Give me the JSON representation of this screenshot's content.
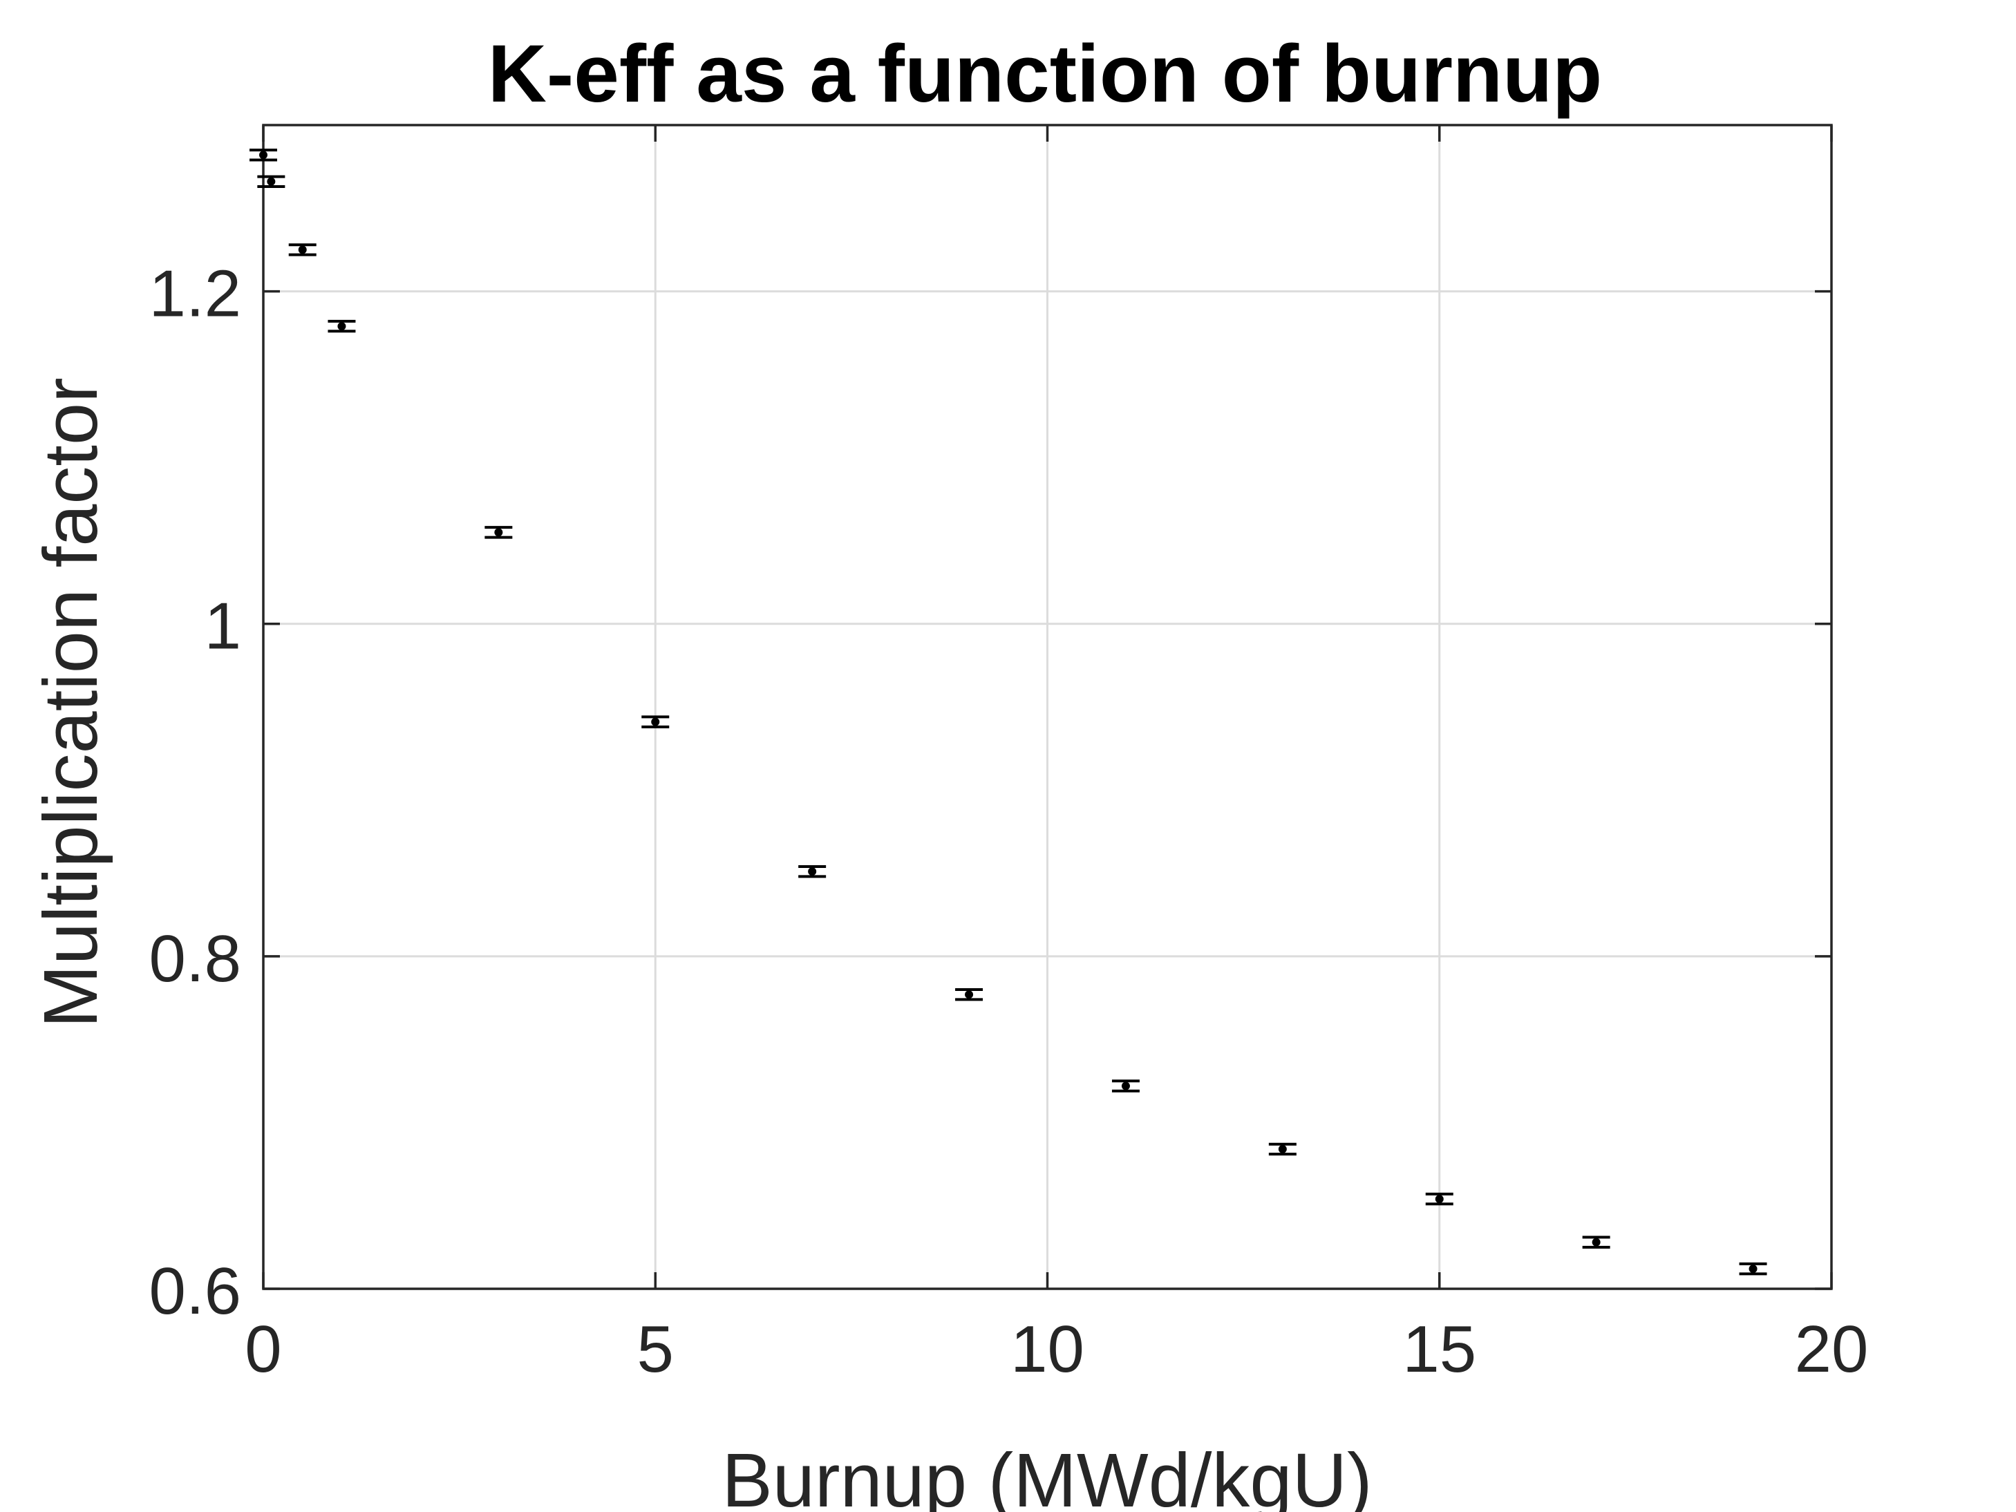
{
  "chart_data": {
    "type": "scatter",
    "title": "K-eff as a function of burnup",
    "xlabel": "Burnup (MWd/kgU)",
    "ylabel": "Multiplication factor",
    "xlim": [
      0,
      20
    ],
    "ylim": [
      0.6,
      1.3
    ],
    "xticks": [
      0,
      5,
      10,
      15,
      20
    ],
    "xtick_labels": [
      "0",
      "5",
      "10",
      "15",
      "20"
    ],
    "yticks": [
      0.6,
      0.8,
      1.0,
      1.2
    ],
    "ytick_labels": [
      "0.6",
      "0.8",
      "1",
      "1.2"
    ],
    "grid": true,
    "legend": "none",
    "colors": {
      "marker": "#000000",
      "axis": "#262626",
      "grid": "#dcdcdc"
    },
    "series": [
      {
        "x": [
          0,
          0.1,
          0.5,
          1,
          3,
          5,
          7,
          9,
          11,
          13,
          15,
          17,
          19
        ],
        "y": [
          1.282,
          1.266,
          1.225,
          1.179,
          1.055,
          0.941,
          0.851,
          0.777,
          0.722,
          0.684,
          0.654,
          0.628,
          0.612
        ],
        "error": [
          0.003,
          0.003,
          0.003,
          0.003,
          0.003,
          0.003,
          0.003,
          0.003,
          0.003,
          0.003,
          0.003,
          0.003,
          0.003
        ]
      }
    ]
  }
}
